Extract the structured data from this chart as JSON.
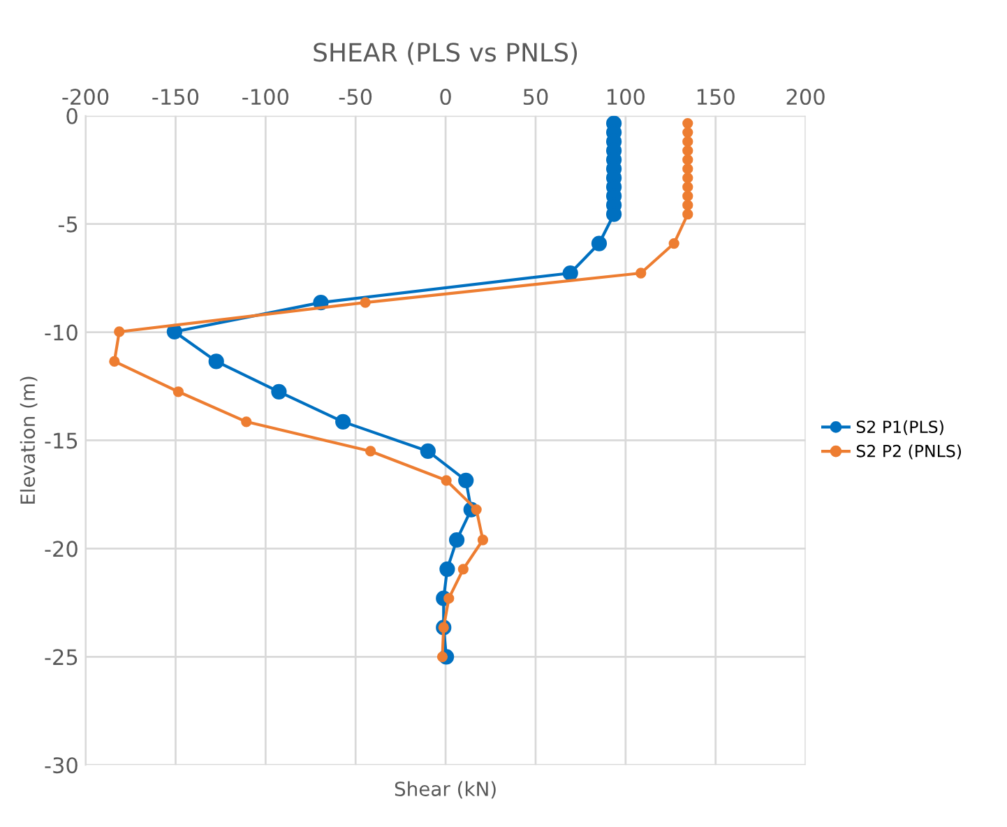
{
  "chart_data": {
    "type": "line",
    "title": "SHEAR (PLS vs PNLS)",
    "xlabel": "Shear (kN)",
    "ylabel": "Elevation (m)",
    "xlim": [
      -200,
      200
    ],
    "xticks": [
      -200,
      -150,
      -100,
      -50,
      0,
      50,
      100,
      150,
      200
    ],
    "ylim": [
      -30,
      0
    ],
    "yticks": [
      -30,
      -25,
      -20,
      -15,
      -10,
      -5,
      0
    ],
    "grid": true,
    "legend": "right",
    "marker": "circle",
    "line_style": "solid",
    "series": [
      {
        "name": "S2 P1(PLS)",
        "color": "#0070c0",
        "x": [
          93.5,
          93.5,
          93.5,
          93.5,
          93.5,
          93.5,
          93.5,
          93.5,
          93.5,
          93.5,
          93.5,
          85.3,
          69.3,
          -69.3,
          -150.6,
          -127.4,
          -92.6,
          -57,
          -9.8,
          11.3,
          14.2,
          6.2,
          0.9,
          -1.1,
          -1.1,
          0.4
        ],
        "values": [
          -0.35,
          -0.77,
          -1.19,
          -1.61,
          -2.03,
          -2.45,
          -2.87,
          -3.29,
          -3.71,
          -4.13,
          -4.55,
          -5.9,
          -7.27,
          -8.63,
          -9.98,
          -11.35,
          -12.75,
          -14.14,
          -15.5,
          -16.85,
          -18.2,
          -19.6,
          -20.95,
          -22.3,
          -23.65,
          -25.0
        ]
      },
      {
        "name": "S2 P2 (PNLS)",
        "color": "#ed7d31",
        "x": [
          134.5,
          134.5,
          134.5,
          134.5,
          134.5,
          134.5,
          134.5,
          134.5,
          134.5,
          134.5,
          134.5,
          126.9,
          108.5,
          -44.6,
          -181.3,
          -184.0,
          -148.5,
          -110.7,
          -41.7,
          0.4,
          17.1,
          20.7,
          9.8,
          1.8,
          -1.1,
          -1.8
        ],
        "values": [
          -0.35,
          -0.77,
          -1.19,
          -1.61,
          -2.03,
          -2.45,
          -2.87,
          -3.29,
          -3.71,
          -4.13,
          -4.55,
          -5.9,
          -7.27,
          -8.63,
          -9.98,
          -11.35,
          -12.75,
          -14.14,
          -15.5,
          -16.85,
          -18.2,
          -19.6,
          -20.95,
          -22.3,
          -23.65,
          -25.0
        ]
      }
    ]
  }
}
